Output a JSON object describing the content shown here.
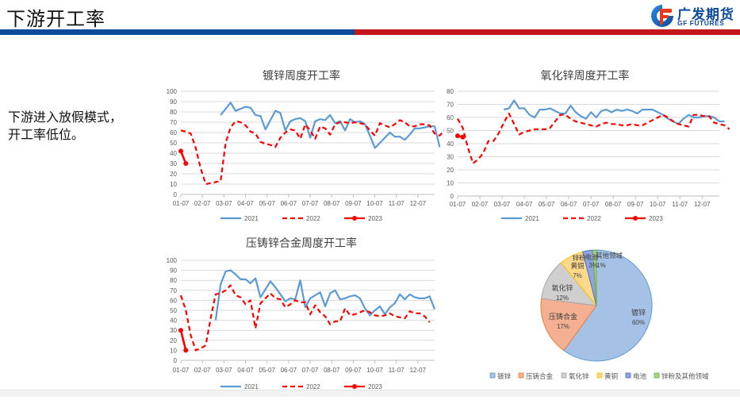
{
  "header": {
    "title": "下游开工率",
    "logo_cn": "广发期货",
    "logo_en": "GF FUTURES",
    "colors": {
      "blue": "#0c4b9b",
      "red": "#c4161c"
    }
  },
  "note": {
    "line1": "下游进入放假模式，",
    "line2": "开工率低位。"
  },
  "chart_data": [
    {
      "id": "galvanizing",
      "type": "line",
      "title": "镀锌周度开工率",
      "xlabel": "",
      "ylabel": "",
      "categories": [
        "01-07",
        "02-07",
        "03-07",
        "04-07",
        "05-07",
        "06-07",
        "07-07",
        "08-07",
        "09-07",
        "10-07",
        "11-07",
        "12-07"
      ],
      "ylim": [
        0,
        100
      ],
      "yticks": [
        0,
        10,
        20,
        30,
        40,
        50,
        60,
        70,
        80,
        90,
        100
      ],
      "grid": true,
      "legend_position": "bottom",
      "weeks": 52,
      "series": [
        {
          "name": "2021",
          "color": "#5b9bd5",
          "style": "solid",
          "start_week": 8,
          "values": [
            77,
            83,
            89,
            81,
            83,
            85,
            84,
            77,
            76,
            63,
            72,
            81,
            79,
            62,
            71,
            73,
            74,
            71,
            55,
            71,
            73,
            72,
            77,
            69,
            71,
            62,
            73,
            70,
            71,
            68,
            57,
            45,
            50,
            55,
            60,
            56,
            56,
            53,
            58,
            64,
            64,
            65,
            66,
            66,
            46
          ]
        },
        {
          "name": "2022",
          "color": "#ff0000",
          "style": "dashed",
          "start_week": 0,
          "values": [
            62,
            61,
            59,
            45,
            25,
            10,
            11,
            12,
            13,
            50,
            65,
            71,
            70,
            67,
            61,
            59,
            51,
            49,
            48,
            46,
            55,
            60,
            63,
            62,
            54,
            68,
            62,
            54,
            66,
            64,
            58,
            68,
            70,
            70,
            69,
            70,
            69,
            68,
            62,
            57,
            69,
            67,
            65,
            68,
            72,
            70,
            66,
            66,
            68,
            68,
            67,
            59,
            57,
            62,
            56,
            51
          ]
        },
        {
          "name": "2023",
          "color": "#ff0000",
          "style": "solid-marker",
          "start_week": 0,
          "values": [
            42,
            30
          ]
        }
      ]
    },
    {
      "id": "zinc-oxide",
      "type": "line",
      "title": "氧化锌周度开工率",
      "xlabel": "",
      "ylabel": "",
      "categories": [
        "01-07",
        "02-07",
        "03-07",
        "04-07",
        "05-07",
        "06-07",
        "07-07",
        "08-07",
        "09-07",
        "10-07",
        "11-07",
        "12-07"
      ],
      "ylim": [
        0,
        80
      ],
      "yticks": [
        0,
        10,
        20,
        30,
        40,
        50,
        60,
        70,
        80
      ],
      "grid": true,
      "legend_position": "bottom",
      "weeks": 52,
      "series": [
        {
          "name": "2021",
          "color": "#5b9bd5",
          "style": "solid",
          "start_week": 9,
          "values": [
            66,
            67,
            73,
            67,
            67,
            62,
            60,
            66,
            66,
            67,
            65,
            63,
            63,
            69,
            64,
            61,
            59,
            64,
            60,
            65,
            66,
            64,
            66,
            65,
            66,
            65,
            63,
            66,
            66,
            66,
            64,
            62,
            59,
            57,
            55,
            59,
            62,
            60,
            60,
            61,
            61,
            60,
            57,
            57
          ]
        },
        {
          "name": "2022",
          "color": "#ff0000",
          "style": "dashed",
          "start_week": 0,
          "values": [
            59,
            52,
            37,
            25,
            28,
            33,
            42,
            42,
            48,
            56,
            63,
            55,
            47,
            49,
            50,
            51,
            51,
            51,
            52,
            57,
            62,
            62,
            59,
            57,
            56,
            55,
            54,
            53,
            55,
            56,
            55,
            55,
            54,
            54,
            55,
            54,
            54,
            56,
            58,
            60,
            62,
            60,
            57,
            55,
            54,
            53,
            62,
            62,
            61,
            61,
            56,
            55,
            54,
            51
          ]
        },
        {
          "name": "2023",
          "color": "#ff0000",
          "style": "solid-marker",
          "start_week": 0,
          "values": [
            46,
            45
          ]
        }
      ]
    },
    {
      "id": "die-casting",
      "type": "line",
      "title": "压铸锌合金周度开工率",
      "xlabel": "",
      "ylabel": "",
      "categories": [
        "01-07",
        "02-07",
        "03-07",
        "04-07",
        "05-07",
        "06-07",
        "07-07",
        "08-07",
        "09-07",
        "10-07",
        "11-07",
        "12-07"
      ],
      "ylim": [
        0,
        100
      ],
      "yticks": [
        0,
        10,
        20,
        30,
        40,
        50,
        60,
        70,
        80,
        90,
        100
      ],
      "grid": true,
      "legend_position": "bottom",
      "weeks": 52,
      "series": [
        {
          "name": "2021",
          "color": "#5b9bd5",
          "style": "solid",
          "start_week": 7,
          "values": [
            40,
            76,
            89,
            90,
            86,
            81,
            81,
            77,
            82,
            63,
            71,
            79,
            73,
            66,
            59,
            62,
            61,
            80,
            53,
            62,
            65,
            68,
            54,
            67,
            70,
            61,
            62,
            64,
            65,
            62,
            52,
            45,
            50,
            54,
            46,
            53,
            57,
            66,
            61,
            66,
            63,
            62,
            62,
            64,
            51
          ]
        },
        {
          "name": "2022",
          "color": "#ff0000",
          "style": "dashed",
          "start_week": 0,
          "values": [
            65,
            50,
            25,
            10,
            12,
            15,
            42,
            66,
            67,
            70,
            75,
            65,
            63,
            56,
            60,
            32,
            57,
            62,
            67,
            62,
            61,
            53,
            56,
            60,
            58,
            58,
            46,
            55,
            48,
            44,
            36,
            39,
            39,
            52,
            45,
            46,
            48,
            50,
            48,
            45,
            44,
            45,
            47,
            44,
            43,
            42,
            49,
            47,
            47,
            44,
            38
          ]
        },
        {
          "name": "2023",
          "color": "#ff0000",
          "style": "solid-marker",
          "start_week": 0,
          "values": [
            30,
            10
          ]
        }
      ]
    },
    {
      "id": "zinc-consumption-structure",
      "type": "pie",
      "title": "",
      "legend_position": "bottom",
      "slices": [
        {
          "label": "镀锌",
          "value": 60,
          "pct_label": "60%",
          "color": "#a5c2e6",
          "stroke": "#5b9bd5"
        },
        {
          "label": "压铸合金",
          "value": 17,
          "pct_label": "17%",
          "color": "#f5b093",
          "stroke": "#ed7d31"
        },
        {
          "label": "氧化锌",
          "value": 12,
          "pct_label": "12%",
          "color": "#cfcfcf",
          "stroke": "#a5a5a5"
        },
        {
          "label": "黄铜",
          "value": 7,
          "pct_label": "7%",
          "color": "#ffd98a",
          "stroke": "#ffc000"
        },
        {
          "label": "电池",
          "value": 3,
          "pct_label": "3%",
          "color": "#8ea5dd",
          "stroke": "#4472c4"
        },
        {
          "label": "锌粉及其他领域",
          "value": 1,
          "pct_label": "1%",
          "color": "#a9d18e",
          "stroke": "#70ad47"
        }
      ]
    }
  ]
}
